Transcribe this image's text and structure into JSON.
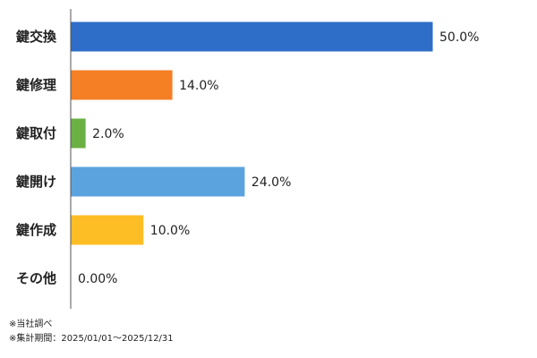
{
  "chart_data": {
    "type": "bar",
    "orientation": "horizontal",
    "categories": [
      "鍵交換",
      "鍵修理",
      "鍵取付",
      "鍵開け",
      "鍵作成",
      "その他"
    ],
    "values": [
      50.0,
      14.0,
      2.0,
      24.0,
      10.0,
      0.0
    ],
    "value_labels": [
      "50.0%",
      "14.0%",
      "2.0%",
      "24.0%",
      "10.0%",
      "0.00%"
    ],
    "colors": [
      "#2e6dc8",
      "#f47f24",
      "#6ab043",
      "#5ba3df",
      "#fdbd25",
      "#cccccc"
    ],
    "xlim": [
      0,
      50
    ],
    "grid": false,
    "legend": "none"
  },
  "notes": [
    "※当社調べ",
    "※集計期間：2025/01/01～2025/12/31"
  ]
}
